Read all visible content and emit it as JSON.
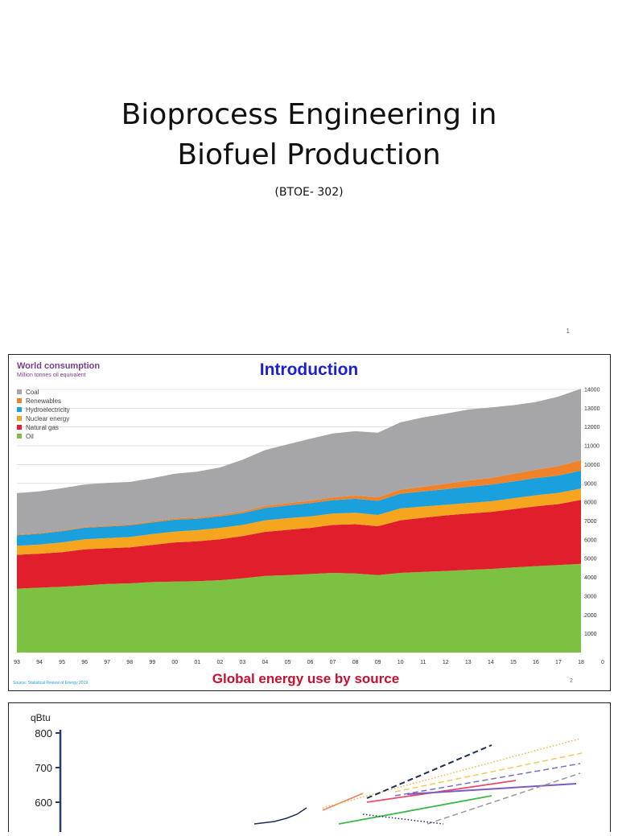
{
  "slide1": {
    "title_line1": "Bioprocess Engineering in",
    "title_line2": "Biofuel Production",
    "subtitle": "(BTOE- 302)",
    "page_number": "1"
  },
  "slide2": {
    "chart_title": "World consumption",
    "chart_subtitle": "Million tonnes oil equivalent",
    "heading": "Introduction",
    "caption": "Global energy use by source",
    "source": "Source: Statistical Review of Energy 2019",
    "page_number": "2",
    "colors": {
      "coal": "#a6a6a8",
      "renewables": "#f0832a",
      "hydro": "#1aa0dd",
      "nuclear": "#f6a51f",
      "gas": "#e11f2c",
      "oil": "#7cc142",
      "heading": "#1b1fd6",
      "caption": "#c8102e",
      "chart_title": "#7a3c8c"
    }
  },
  "chart_data": [
    {
      "type": "area",
      "stacked": true,
      "title": "World consumption",
      "subtitle": "Million tonnes oil equivalent",
      "x": [
        "93",
        "94",
        "95",
        "96",
        "97",
        "98",
        "99",
        "00",
        "01",
        "02",
        "03",
        "04",
        "05",
        "06",
        "07",
        "08",
        "09",
        "10",
        "11",
        "12",
        "13",
        "14",
        "15",
        "16",
        "17",
        "18"
      ],
      "ylim": [
        0,
        14000
      ],
      "yticks": [
        0,
        1000,
        2000,
        3000,
        4000,
        5000,
        6000,
        7000,
        8000,
        9000,
        10000,
        11000,
        12000,
        13000,
        14000
      ],
      "legend_position": "top-left",
      "series": [
        {
          "name": "Oil",
          "color": "#7cc142",
          "values": [
            3400,
            3450,
            3500,
            3570,
            3650,
            3680,
            3750,
            3780,
            3800,
            3850,
            3950,
            4080,
            4120,
            4180,
            4240,
            4210,
            4120,
            4240,
            4290,
            4340,
            4400,
            4450,
            4530,
            4600,
            4660,
            4720
          ]
        },
        {
          "name": "Natural gas",
          "color": "#e11f2c",
          "values": [
            1800,
            1810,
            1840,
            1920,
            1900,
            1920,
            1980,
            2080,
            2120,
            2180,
            2250,
            2340,
            2410,
            2450,
            2550,
            2620,
            2600,
            2800,
            2880,
            2960,
            3000,
            3030,
            3100,
            3180,
            3240,
            3400
          ]
        },
        {
          "name": "Nuclear energy",
          "color": "#f6a51f",
          "values": [
            480,
            490,
            520,
            540,
            540,
            550,
            570,
            580,
            590,
            600,
            590,
            610,
            620,
            620,
            610,
            610,
            600,
            630,
            600,
            560,
            560,
            570,
            580,
            590,
            600,
            610
          ]
        },
        {
          "name": "Hydroelectricity",
          "color": "#1aa0dd",
          "values": [
            560,
            570,
            600,
            610,
            610,
            620,
            620,
            630,
            610,
            620,
            630,
            660,
            680,
            700,
            710,
            740,
            750,
            780,
            800,
            830,
            860,
            880,
            890,
            910,
            920,
            950
          ]
        },
        {
          "name": "Renewables",
          "color": "#f0832a",
          "values": [
            40,
            40,
            45,
            45,
            50,
            55,
            60,
            65,
            70,
            75,
            90,
            100,
            115,
            130,
            150,
            170,
            190,
            220,
            250,
            290,
            330,
            360,
            410,
            450,
            500,
            560
          ]
        },
        {
          "name": "Coal",
          "color": "#a6a6a8",
          "values": [
            2200,
            2220,
            2240,
            2260,
            2280,
            2250,
            2300,
            2380,
            2440,
            2520,
            2750,
            2980,
            3130,
            3300,
            3400,
            3430,
            3440,
            3580,
            3690,
            3730,
            3780,
            3750,
            3650,
            3600,
            3700,
            3800
          ]
        }
      ]
    },
    {
      "type": "line",
      "ylabel": "qBtu",
      "yticks_visible": [
        800,
        700,
        600
      ]
    }
  ],
  "slide3": {
    "ylabel": "qBtu",
    "ticks": [
      "800",
      "700",
      "600"
    ]
  }
}
